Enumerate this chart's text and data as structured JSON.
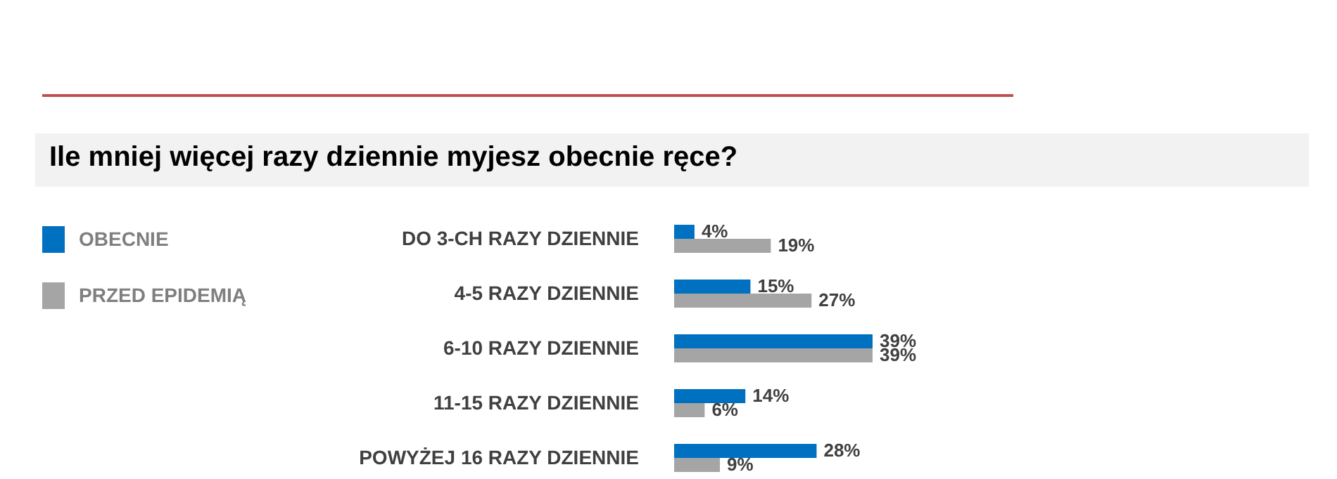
{
  "chart_data": {
    "type": "bar",
    "orientation": "horizontal",
    "title": "Ile mniej więcej razy dziennie myjesz obecnie ręce?",
    "categories": [
      "DO 3-CH RAZY DZIENNIE",
      "4-5 RAZY DZIENNIE",
      "6-10 RAZY DZIENNIE",
      "11-15 RAZY DZIENNIE",
      "POWYŻEJ 16 RAZY DZIENNIE"
    ],
    "series": [
      {
        "name": "OBECNIE",
        "color": "#0070c0",
        "values": [
          4,
          15,
          39,
          14,
          28
        ],
        "value_labels": [
          "4%",
          "15%",
          "39%",
          "14%",
          "28%"
        ]
      },
      {
        "name": "PRZED EPIDEMIĄ",
        "color": "#a5a5a5",
        "values": [
          19,
          27,
          39,
          6,
          9
        ],
        "value_labels": [
          "19%",
          "27%",
          "39%",
          "6%",
          "9%"
        ]
      }
    ],
    "legend": "left",
    "grid": false
  }
}
